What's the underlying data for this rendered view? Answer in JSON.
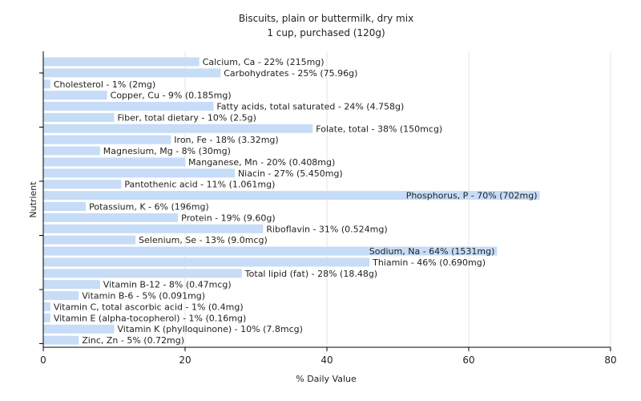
{
  "chart_data": {
    "type": "bar",
    "orientation": "horizontal",
    "title": "Biscuits, plain or buttermilk, dry mix",
    "subtitle": "1 cup, purchased (120g)",
    "xlabel": "% Daily Value",
    "ylabel": "Nutrient",
    "xlim": [
      0,
      80
    ],
    "xticks": [
      0,
      20,
      40,
      60,
      80
    ],
    "grid": true,
    "bar_color": "#c6dcf7",
    "bars": [
      {
        "name": "Calcium, Ca",
        "value": 22,
        "label": "Calcium, Ca - 22% (215mg)"
      },
      {
        "name": "Carbohydrates",
        "value": 25,
        "label": "Carbohydrates - 25% (75.96g)"
      },
      {
        "name": "Cholesterol",
        "value": 1,
        "label": "Cholesterol - 1% (2mg)"
      },
      {
        "name": "Copper, Cu",
        "value": 9,
        "label": "Copper, Cu - 9% (0.185mg)"
      },
      {
        "name": "Fatty acids, total saturated",
        "value": 24,
        "label": "Fatty acids, total saturated - 24% (4.758g)"
      },
      {
        "name": "Fiber, total dietary",
        "value": 10,
        "label": "Fiber, total dietary - 10% (2.5g)"
      },
      {
        "name": "Folate, total",
        "value": 38,
        "label": "Folate, total - 38% (150mcg)"
      },
      {
        "name": "Iron, Fe",
        "value": 18,
        "label": "Iron, Fe - 18% (3.32mg)"
      },
      {
        "name": "Magnesium, Mg",
        "value": 8,
        "label": "Magnesium, Mg - 8% (30mg)"
      },
      {
        "name": "Manganese, Mn",
        "value": 20,
        "label": "Manganese, Mn - 20% (0.408mg)"
      },
      {
        "name": "Niacin",
        "value": 27,
        "label": "Niacin - 27% (5.450mg)"
      },
      {
        "name": "Pantothenic acid",
        "value": 11,
        "label": "Pantothenic acid - 11% (1.061mg)"
      },
      {
        "name": "Phosphorus, P",
        "value": 70,
        "label": "Phosphorus, P - 70% (702mg)"
      },
      {
        "name": "Potassium, K",
        "value": 6,
        "label": "Potassium, K - 6% (196mg)"
      },
      {
        "name": "Protein",
        "value": 19,
        "label": "Protein - 19% (9.60g)"
      },
      {
        "name": "Riboflavin",
        "value": 31,
        "label": "Riboflavin - 31% (0.524mg)"
      },
      {
        "name": "Selenium, Se",
        "value": 13,
        "label": "Selenium, Se - 13% (9.0mcg)"
      },
      {
        "name": "Sodium, Na",
        "value": 64,
        "label": "Sodium, Na - 64% (1531mg)"
      },
      {
        "name": "Thiamin",
        "value": 46,
        "label": "Thiamin - 46% (0.690mg)"
      },
      {
        "name": "Total lipid (fat)",
        "value": 28,
        "label": "Total lipid (fat) - 28% (18.48g)"
      },
      {
        "name": "Vitamin B-12",
        "value": 8,
        "label": "Vitamin B-12 - 8% (0.47mcg)"
      },
      {
        "name": "Vitamin B-6",
        "value": 5,
        "label": "Vitamin B-6 - 5% (0.091mg)"
      },
      {
        "name": "Vitamin C, total ascorbic acid",
        "value": 1,
        "label": "Vitamin C, total ascorbic acid - 1% (0.4mg)"
      },
      {
        "name": "Vitamin E (alpha-tocopherol)",
        "value": 1,
        "label": "Vitamin E (alpha-tocopherol) - 1% (0.16mg)"
      },
      {
        "name": "Vitamin K (phylloquinone)",
        "value": 10,
        "label": "Vitamin K (phylloquinone) - 10% (7.8mcg)"
      },
      {
        "name": "Zinc, Zn",
        "value": 5,
        "label": "Zinc, Zn - 5% (0.72mg)"
      }
    ]
  }
}
